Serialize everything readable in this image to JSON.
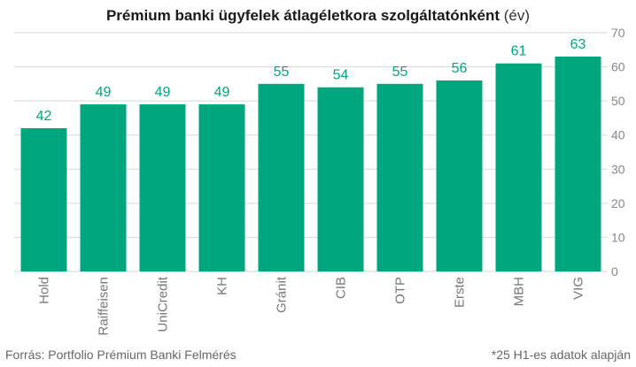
{
  "title": {
    "main": "Prémium banki ügyfelek átlagéletkora szolgáltatónként",
    "unit": "(év)"
  },
  "footer": {
    "source": "Forrás: Portfolio Prémium Banki Felmérés",
    "note": "*25 H1-es adatok alapján"
  },
  "colors": {
    "bar": "#00a67e",
    "value_label": "#00a67e",
    "grid": "#d9d9d9",
    "tick_label": "#888888",
    "category_label": "#777777"
  },
  "chart_data": {
    "type": "bar",
    "categories": [
      "Hold",
      "Raiffeisen",
      "UniCredit",
      "KH",
      "Gránit",
      "CIB",
      "OTP",
      "Erste",
      "MBH",
      "VIG"
    ],
    "values": [
      42,
      49,
      49,
      49,
      55,
      54,
      55,
      56,
      61,
      63
    ],
    "title": "Prémium banki ügyfelek átlagéletkora szolgáltatónként (év)",
    "xlabel": "",
    "ylabel": "",
    "ylim": [
      0,
      70
    ],
    "yticks": [
      0,
      10,
      20,
      30,
      40,
      50,
      60,
      70
    ],
    "y_axis_side": "right",
    "grid": true,
    "legend": "none",
    "data_labels": true
  }
}
